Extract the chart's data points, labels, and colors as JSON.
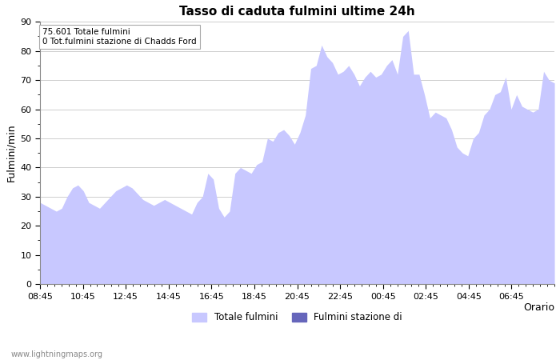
{
  "title": "Tasso di caduta fulmini ultime 24h",
  "xlabel": "Orario",
  "ylabel": "Fulmini/min",
  "annotation_line1": "75.601 Totale fulmini",
  "annotation_line2": "0 Tot.fulmini stazione di Chadds Ford",
  "watermark": "www.lightningmaps.org",
  "legend_label1": "Totale fulmini",
  "legend_label2": "Fulmini stazione di",
  "color_area": "#c8c8ff",
  "color_line": "#6666bb",
  "ylim": [
    0,
    90
  ],
  "yticks": [
    0,
    10,
    20,
    30,
    40,
    50,
    60,
    70,
    80,
    90
  ],
  "xtick_labels": [
    "08:45",
    "10:45",
    "12:45",
    "14:45",
    "16:45",
    "18:45",
    "20:45",
    "22:45",
    "00:45",
    "02:45",
    "04:45",
    "06:45"
  ],
  "y_values": [
    28,
    27,
    26,
    25,
    26,
    30,
    33,
    34,
    32,
    28,
    27,
    26,
    28,
    30,
    32,
    33,
    34,
    33,
    31,
    29,
    28,
    27,
    28,
    29,
    28,
    27,
    26,
    25,
    24,
    28,
    30,
    38,
    36,
    26,
    23,
    25,
    38,
    40,
    39,
    38,
    41,
    42,
    50,
    49,
    52,
    53,
    51,
    48,
    52,
    58,
    74,
    75,
    82,
    78,
    76,
    72,
    73,
    75,
    72,
    68,
    71,
    73,
    71,
    72,
    75,
    77,
    72,
    85,
    87,
    72,
    72,
    65,
    57,
    59,
    58,
    57,
    53,
    47,
    45,
    44,
    50,
    52,
    58,
    60,
    65,
    66,
    71,
    60,
    65,
    61,
    60,
    59,
    60,
    73,
    70,
    69
  ]
}
